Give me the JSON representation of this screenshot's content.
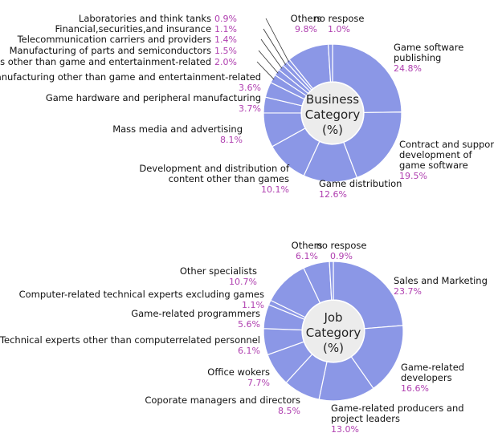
{
  "colors": {
    "slice": "#8b97e6",
    "slice_stroke": "#ffffff",
    "center": "#ececec",
    "pct_text": "#b040b0",
    "label_text": "#111111"
  },
  "chart_data": [
    {
      "type": "pie",
      "subtype": "donut",
      "center_label": [
        "Business",
        "Category",
        "(%)"
      ],
      "order": "clockwise from top",
      "slices": [
        {
          "label": [
            "Game software",
            "publishing"
          ],
          "value": 24.8,
          "value_text": "24.8%"
        },
        {
          "label": [
            "Contract and support",
            "development of",
            "game software"
          ],
          "value": 19.5,
          "value_text": "19.5%"
        },
        {
          "label": [
            "Game distribution"
          ],
          "value": 12.6,
          "value_text": "12.6%"
        },
        {
          "label": [
            "Development and distribution of",
            "content other than games"
          ],
          "value": 10.1,
          "value_text": "10.1%"
        },
        {
          "label": [
            "Mass media and advertising"
          ],
          "value": 8.1,
          "value_text": "8.1%"
        },
        {
          "label": [
            "Game hardware and peripheral manufacturing"
          ],
          "value": 3.7,
          "value_text": "3.7%"
        },
        {
          "label": [
            "Manufacturing other than game and entertainment-related"
          ],
          "value": 3.6,
          "value_text": "3.6%"
        },
        {
          "label": [
            "Services other than game and entertainment-related"
          ],
          "value": 2.0,
          "value_text": "2.0%"
        },
        {
          "label": [
            "Manufacturing of parts and semiconductors"
          ],
          "value": 1.5,
          "value_text": "1.5%"
        },
        {
          "label": [
            "Telecommunication carriers and providers"
          ],
          "value": 1.4,
          "value_text": "1.4%"
        },
        {
          "label": [
            "Financial,securities,and insurance"
          ],
          "value": 1.1,
          "value_text": "1.1%"
        },
        {
          "label": [
            "Laboratories and think tanks"
          ],
          "value": 0.9,
          "value_text": "0.9%"
        },
        {
          "label": [
            "Others"
          ],
          "value": 9.8,
          "value_text": "9.8%"
        },
        {
          "label": [
            "no respose"
          ],
          "value": 1.0,
          "value_text": "1.0%"
        }
      ]
    },
    {
      "type": "pie",
      "subtype": "donut",
      "center_label": [
        "Job",
        "Category",
        "(%)"
      ],
      "order": "clockwise from top",
      "slices": [
        {
          "label": [
            "Sales and Marketing"
          ],
          "value": 23.7,
          "value_text": "23.7%"
        },
        {
          "label": [
            "Game-related",
            "developers"
          ],
          "value": 16.6,
          "value_text": "16.6%"
        },
        {
          "label": [
            "Game-related producers and",
            "project leaders"
          ],
          "value": 13.0,
          "value_text": "13.0%"
        },
        {
          "label": [
            "Coporate managers and directors"
          ],
          "value": 8.5,
          "value_text": "8.5%"
        },
        {
          "label": [
            "Office wokers"
          ],
          "value": 7.7,
          "value_text": "7.7%"
        },
        {
          "label": [
            "Technical experts other than computerrelated personnel"
          ],
          "value": 6.1,
          "value_text": "6.1%"
        },
        {
          "label": [
            "Game-related programmers"
          ],
          "value": 5.6,
          "value_text": "5.6%"
        },
        {
          "label": [
            "Computer-related technical experts excluding games"
          ],
          "value": 1.1,
          "value_text": "1.1%"
        },
        {
          "label": [
            "Other specialists"
          ],
          "value": 10.7,
          "value_text": "10.7%"
        },
        {
          "label": [
            "Others"
          ],
          "value": 6.1,
          "value_text": "6.1%"
        },
        {
          "label": [
            "no respose"
          ],
          "value": 0.9,
          "value_text": "0.9%"
        }
      ]
    }
  ]
}
